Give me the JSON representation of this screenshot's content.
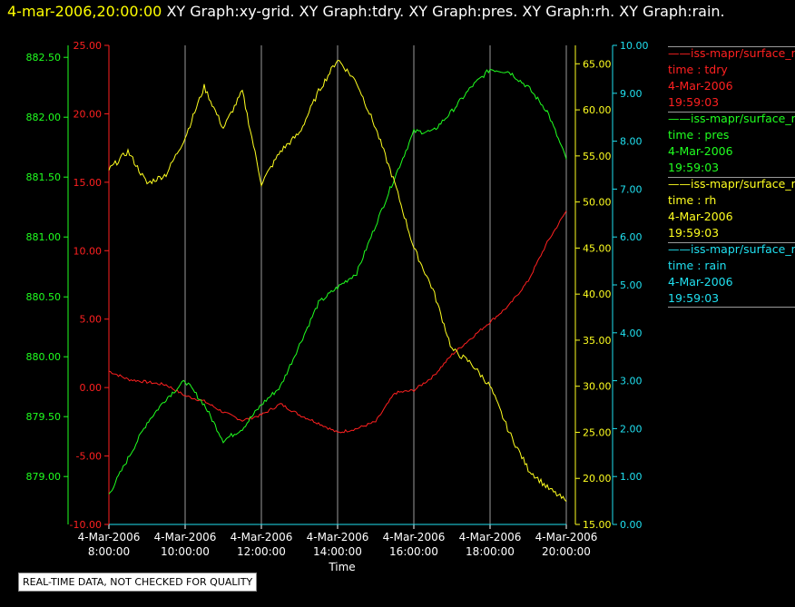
{
  "header": {
    "timestamp": "4-mar-2006,20:00:00",
    "graphs": [
      "XY Graph:xy-grid.",
      "XY Graph:tdry.",
      "XY Graph:pres.",
      "XY Graph:rh.",
      "XY Graph:rain."
    ]
  },
  "legend": [
    {
      "series": "iss-mapr/surface_m",
      "label": "time : tdry",
      "date": "4-Mar-2006",
      "time": "19:59:03",
      "color": "#ff2020"
    },
    {
      "series": "iss-mapr/surface_m",
      "label": "time : pres",
      "date": "4-Mar-2006",
      "time": "19:59:03",
      "color": "#20ff20"
    },
    {
      "series": "iss-mapr/surface_m",
      "label": "time : rh",
      "date": "4-Mar-2006",
      "time": "19:59:03",
      "color": "#ffff20"
    },
    {
      "series": "iss-mapr/surface_m",
      "label": "time : rain",
      "date": "4-Mar-2006",
      "time": "19:59:03",
      "color": "#20e0f0"
    }
  ],
  "footer_note": "REAL-TIME DATA, NOT CHECKED FOR QUALITY",
  "chart_data": {
    "type": "line",
    "xlabel": "Time",
    "x_ticks": [
      [
        "4-Mar-2006",
        "8:00:00"
      ],
      [
        "4-Mar-2006",
        "10:00:00"
      ],
      [
        "4-Mar-2006",
        "12:00:00"
      ],
      [
        "4-Mar-2006",
        "14:00:00"
      ],
      [
        "4-Mar-2006",
        "16:00:00"
      ],
      [
        "4-Mar-2006",
        "18:00:00"
      ],
      [
        "4-Mar-2006",
        "20:00:00"
      ]
    ],
    "x_range_hours": [
      8,
      20
    ],
    "grid": "vertical",
    "axes": {
      "tdry": {
        "range": [
          -10,
          25
        ],
        "ticks": [
          "-10.00",
          "-5.00",
          "0.00",
          "5.00",
          "10.00",
          "15.00",
          "20.00",
          "25.00"
        ],
        "color": "#ff2020"
      },
      "pres": {
        "range": [
          878.6,
          882.6
        ],
        "ticks": [
          "879.00",
          "879.50",
          "880.00",
          "880.50",
          "881.00",
          "881.50",
          "882.00",
          "882.50"
        ],
        "color": "#20ff20"
      },
      "rh": {
        "range": [
          15,
          67
        ],
        "ticks": [
          "15.00",
          "20.00",
          "25.00",
          "30.00",
          "35.00",
          "40.00",
          "45.00",
          "50.00",
          "55.00",
          "60.00",
          "65.00"
        ],
        "color": "#ffff20"
      },
      "rain": {
        "range": [
          0,
          10
        ],
        "ticks": [
          "0.00",
          "1.00",
          "2.00",
          "3.00",
          "4.00",
          "5.00",
          "6.00",
          "7.00",
          "8.00",
          "9.00",
          "10.00"
        ],
        "color": "#20e0f0"
      }
    },
    "series": [
      {
        "name": "tdry",
        "axis": "tdry",
        "color": "#ff2020",
        "x": [
          8.0,
          8.5,
          9.0,
          9.5,
          10.0,
          10.5,
          11.0,
          11.5,
          12.0,
          12.5,
          13.0,
          13.5,
          14.0,
          14.5,
          15.0,
          15.5,
          16.0,
          16.5,
          17.0,
          17.5,
          18.0,
          18.5,
          19.0,
          19.5,
          20.0
        ],
        "values": [
          1.2,
          0.6,
          0.4,
          0.2,
          -0.6,
          -1.0,
          -1.8,
          -2.4,
          -2.0,
          -1.2,
          -2.0,
          -2.6,
          -3.3,
          -3.0,
          -2.5,
          -0.4,
          -0.2,
          0.8,
          2.4,
          3.6,
          4.8,
          6.0,
          7.8,
          10.6,
          12.9
        ]
      },
      {
        "name": "pres",
        "axis": "pres",
        "color": "#20ff20",
        "x": [
          8.0,
          8.5,
          9.0,
          9.5,
          10.0,
          10.5,
          11.0,
          11.5,
          12.0,
          12.5,
          13.0,
          13.5,
          14.0,
          14.5,
          15.0,
          15.5,
          16.0,
          16.5,
          17.0,
          17.5,
          18.0,
          18.5,
          19.0,
          19.5,
          20.0
        ],
        "values": [
          878.85,
          879.15,
          879.45,
          879.65,
          879.8,
          879.6,
          879.3,
          879.4,
          879.6,
          879.75,
          880.1,
          880.45,
          880.58,
          880.7,
          881.1,
          881.5,
          881.88,
          881.88,
          882.05,
          882.25,
          882.4,
          882.38,
          882.25,
          882.05,
          881.65
        ]
      },
      {
        "name": "rh",
        "axis": "rh",
        "color": "#ffff20",
        "x": [
          8.0,
          8.5,
          9.0,
          9.5,
          10.0,
          10.5,
          11.0,
          11.5,
          12.0,
          12.5,
          13.0,
          13.5,
          14.0,
          14.5,
          15.0,
          15.5,
          16.0,
          16.5,
          17.0,
          17.5,
          18.0,
          18.5,
          19.0,
          19.5,
          20.0
        ],
        "values": [
          53.5,
          55.5,
          52.0,
          53.0,
          57.0,
          62.5,
          58.0,
          62.0,
          52.0,
          55.5,
          57.5,
          62.0,
          65.5,
          63.0,
          58.0,
          52.0,
          45.0,
          40.5,
          34.0,
          32.5,
          30.0,
          25.0,
          21.0,
          19.0,
          17.5
        ]
      },
      {
        "name": "rain",
        "axis": "rain",
        "color": "#20e0f0",
        "x": [
          8.0,
          20.0
        ],
        "values": [
          0.0,
          0.0
        ]
      }
    ]
  }
}
